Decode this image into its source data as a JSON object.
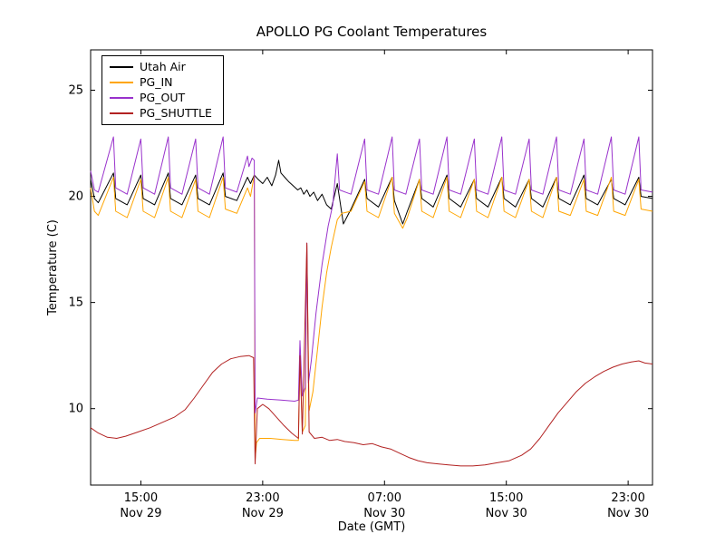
{
  "chart_data": {
    "type": "line",
    "title": "APOLLO PG Coolant Temperatures",
    "xlabel": "Date (GMT)",
    "ylabel": "Temperature (C)",
    "grid": false,
    "legend_position": "upper left",
    "x_unit": "hours since Nov 29 00:00 GMT",
    "xlim": [
      11.7,
      48.6
    ],
    "ylim": [
      6.4,
      26.9
    ],
    "x_ticks": [
      {
        "value": 15,
        "time": "15:00",
        "date": "Nov 29"
      },
      {
        "value": 23,
        "time": "23:00",
        "date": "Nov 29"
      },
      {
        "value": 31,
        "time": "07:00",
        "date": "Nov 30"
      },
      {
        "value": 39,
        "time": "15:00",
        "date": "Nov 30"
      },
      {
        "value": 47,
        "time": "23:00",
        "date": "Nov 30"
      }
    ],
    "y_ticks": [
      10,
      15,
      20,
      25
    ],
    "series": [
      {
        "name": "Utah Air",
        "color": "#000000",
        "points": [
          [
            11.7,
            20.8
          ],
          [
            11.95,
            19.9
          ],
          [
            12.2,
            19.7
          ],
          [
            13.2,
            21.1
          ],
          [
            13.35,
            19.9
          ],
          [
            14.1,
            19.6
          ],
          [
            15.0,
            21.0
          ],
          [
            15.15,
            19.9
          ],
          [
            15.9,
            19.6
          ],
          [
            16.8,
            21.1
          ],
          [
            16.95,
            19.9
          ],
          [
            17.7,
            19.6
          ],
          [
            18.6,
            21.0
          ],
          [
            18.75,
            19.9
          ],
          [
            19.5,
            19.6
          ],
          [
            20.4,
            21.1
          ],
          [
            20.55,
            20.0
          ],
          [
            21.3,
            19.8
          ],
          [
            22.0,
            20.9
          ],
          [
            22.2,
            20.6
          ],
          [
            22.45,
            21.0
          ],
          [
            22.7,
            20.8
          ],
          [
            23.0,
            20.6
          ],
          [
            23.3,
            20.9
          ],
          [
            23.6,
            20.5
          ],
          [
            23.85,
            21.0
          ],
          [
            24.05,
            21.7
          ],
          [
            24.2,
            21.1
          ],
          [
            24.45,
            20.9
          ],
          [
            24.7,
            20.7
          ],
          [
            25.0,
            20.5
          ],
          [
            25.3,
            20.3
          ],
          [
            25.5,
            20.4
          ],
          [
            25.7,
            20.1
          ],
          [
            25.9,
            20.3
          ],
          [
            26.1,
            20.0
          ],
          [
            26.35,
            20.2
          ],
          [
            26.6,
            19.8
          ],
          [
            26.9,
            20.1
          ],
          [
            27.2,
            19.6
          ],
          [
            27.5,
            19.4
          ],
          [
            27.9,
            20.6
          ],
          [
            28.05,
            19.9
          ],
          [
            28.3,
            18.7
          ],
          [
            28.8,
            19.4
          ],
          [
            29.7,
            20.8
          ],
          [
            29.85,
            19.9
          ],
          [
            30.6,
            19.5
          ],
          [
            31.5,
            20.9
          ],
          [
            31.65,
            19.8
          ],
          [
            32.2,
            18.7
          ],
          [
            32.5,
            19.3
          ],
          [
            33.3,
            20.8
          ],
          [
            33.45,
            19.9
          ],
          [
            34.2,
            19.5
          ],
          [
            35.1,
            21.0
          ],
          [
            35.25,
            19.9
          ],
          [
            36.0,
            19.5
          ],
          [
            36.9,
            20.8
          ],
          [
            37.05,
            19.9
          ],
          [
            37.8,
            19.5
          ],
          [
            38.7,
            20.9
          ],
          [
            38.85,
            19.9
          ],
          [
            39.6,
            19.5
          ],
          [
            40.5,
            20.8
          ],
          [
            40.65,
            19.9
          ],
          [
            41.4,
            19.5
          ],
          [
            42.3,
            20.9
          ],
          [
            42.45,
            19.9
          ],
          [
            43.2,
            19.6
          ],
          [
            44.1,
            21.0
          ],
          [
            44.25,
            19.9
          ],
          [
            45.0,
            19.6
          ],
          [
            45.9,
            20.8
          ],
          [
            46.05,
            19.9
          ],
          [
            46.8,
            19.6
          ],
          [
            47.7,
            20.9
          ],
          [
            47.85,
            20.0
          ],
          [
            48.6,
            19.9
          ]
        ]
      },
      {
        "name": "PG_IN",
        "color": "#ffa500",
        "points": [
          [
            11.7,
            20.4
          ],
          [
            11.95,
            19.3
          ],
          [
            12.2,
            19.1
          ],
          [
            13.2,
            20.9
          ],
          [
            13.35,
            19.3
          ],
          [
            14.1,
            19.0
          ],
          [
            15.0,
            20.8
          ],
          [
            15.15,
            19.3
          ],
          [
            15.9,
            19.0
          ],
          [
            16.8,
            20.9
          ],
          [
            16.95,
            19.3
          ],
          [
            17.7,
            19.0
          ],
          [
            18.6,
            20.8
          ],
          [
            18.75,
            19.3
          ],
          [
            19.5,
            19.0
          ],
          [
            20.4,
            20.9
          ],
          [
            20.55,
            19.4
          ],
          [
            21.3,
            19.2
          ],
          [
            22.0,
            20.4
          ],
          [
            22.2,
            20.0
          ],
          [
            22.45,
            21.0
          ],
          [
            22.5,
            7.6
          ],
          [
            22.6,
            8.4
          ],
          [
            22.8,
            8.6
          ],
          [
            23.5,
            8.6
          ],
          [
            24.3,
            8.55
          ],
          [
            25.1,
            8.5
          ],
          [
            25.35,
            8.5
          ],
          [
            25.45,
            12.9
          ],
          [
            25.6,
            8.9
          ],
          [
            25.8,
            9.2
          ],
          [
            25.9,
            17.7
          ],
          [
            26.05,
            9.9
          ],
          [
            26.3,
            10.8
          ],
          [
            26.6,
            12.8
          ],
          [
            26.9,
            14.8
          ],
          [
            27.2,
            16.4
          ],
          [
            27.5,
            17.6
          ],
          [
            27.9,
            18.9
          ],
          [
            28.2,
            19.2
          ],
          [
            28.8,
            19.3
          ],
          [
            29.7,
            20.7
          ],
          [
            29.85,
            19.3
          ],
          [
            30.6,
            19.0
          ],
          [
            31.5,
            20.9
          ],
          [
            31.65,
            19.2
          ],
          [
            32.2,
            18.5
          ],
          [
            32.5,
            19.0
          ],
          [
            33.3,
            20.8
          ],
          [
            33.45,
            19.3
          ],
          [
            34.2,
            19.0
          ],
          [
            35.1,
            20.9
          ],
          [
            35.25,
            19.3
          ],
          [
            36.0,
            19.0
          ],
          [
            36.9,
            20.8
          ],
          [
            37.05,
            19.3
          ],
          [
            37.8,
            19.0
          ],
          [
            38.7,
            20.9
          ],
          [
            38.85,
            19.3
          ],
          [
            39.6,
            19.0
          ],
          [
            40.5,
            20.8
          ],
          [
            40.65,
            19.3
          ],
          [
            41.4,
            19.0
          ],
          [
            42.3,
            20.9
          ],
          [
            42.45,
            19.3
          ],
          [
            43.2,
            19.1
          ],
          [
            44.1,
            20.8
          ],
          [
            44.25,
            19.3
          ],
          [
            45.0,
            19.1
          ],
          [
            45.9,
            20.9
          ],
          [
            46.05,
            19.3
          ],
          [
            46.8,
            19.1
          ],
          [
            47.7,
            20.8
          ],
          [
            47.85,
            19.4
          ],
          [
            48.6,
            19.3
          ]
        ]
      },
      {
        "name": "PG_OUT",
        "color": "#9932cc",
        "points": [
          [
            11.7,
            21.2
          ],
          [
            11.95,
            20.3
          ],
          [
            12.2,
            20.2
          ],
          [
            13.2,
            22.8
          ],
          [
            13.35,
            20.4
          ],
          [
            14.1,
            20.1
          ],
          [
            15.0,
            22.7
          ],
          [
            15.15,
            20.4
          ],
          [
            15.9,
            20.1
          ],
          [
            16.8,
            22.8
          ],
          [
            16.95,
            20.4
          ],
          [
            17.7,
            20.1
          ],
          [
            18.6,
            22.7
          ],
          [
            18.75,
            20.4
          ],
          [
            19.5,
            20.1
          ],
          [
            20.4,
            22.8
          ],
          [
            20.55,
            20.4
          ],
          [
            21.3,
            20.2
          ],
          [
            22.0,
            21.9
          ],
          [
            22.1,
            21.4
          ],
          [
            22.3,
            21.8
          ],
          [
            22.45,
            21.7
          ],
          [
            22.5,
            9.8
          ],
          [
            22.65,
            10.5
          ],
          [
            23.3,
            10.45
          ],
          [
            24.2,
            10.4
          ],
          [
            25.1,
            10.35
          ],
          [
            25.35,
            10.4
          ],
          [
            25.45,
            13.2
          ],
          [
            25.6,
            10.6
          ],
          [
            25.8,
            11.0
          ],
          [
            25.9,
            17.8
          ],
          [
            26.0,
            11.2
          ],
          [
            26.2,
            12.3
          ],
          [
            26.5,
            14.5
          ],
          [
            26.9,
            16.8
          ],
          [
            27.3,
            18.6
          ],
          [
            27.6,
            19.6
          ],
          [
            27.9,
            22.0
          ],
          [
            28.05,
            20.3
          ],
          [
            28.8,
            20.1
          ],
          [
            29.7,
            22.7
          ],
          [
            29.85,
            20.3
          ],
          [
            30.6,
            20.1
          ],
          [
            31.5,
            22.8
          ],
          [
            31.65,
            20.3
          ],
          [
            32.4,
            20.1
          ],
          [
            33.3,
            22.7
          ],
          [
            33.45,
            20.3
          ],
          [
            34.2,
            20.1
          ],
          [
            35.1,
            22.8
          ],
          [
            35.25,
            20.3
          ],
          [
            36.0,
            20.1
          ],
          [
            36.9,
            22.7
          ],
          [
            37.05,
            20.3
          ],
          [
            37.8,
            20.1
          ],
          [
            38.7,
            22.8
          ],
          [
            38.85,
            20.3
          ],
          [
            39.6,
            20.1
          ],
          [
            40.5,
            22.7
          ],
          [
            40.65,
            20.3
          ],
          [
            41.4,
            20.1
          ],
          [
            42.3,
            22.8
          ],
          [
            42.45,
            20.3
          ],
          [
            43.2,
            20.1
          ],
          [
            44.1,
            22.7
          ],
          [
            44.25,
            20.3
          ],
          [
            45.0,
            20.1
          ],
          [
            45.9,
            22.8
          ],
          [
            46.05,
            20.3
          ],
          [
            46.8,
            20.1
          ],
          [
            47.7,
            22.8
          ],
          [
            47.85,
            20.3
          ],
          [
            48.6,
            20.2
          ]
        ]
      },
      {
        "name": "PG_SHUTTLE",
        "color": "#b22222",
        "points": [
          [
            11.7,
            9.1
          ],
          [
            12.2,
            8.85
          ],
          [
            12.8,
            8.65
          ],
          [
            13.4,
            8.6
          ],
          [
            14.0,
            8.7
          ],
          [
            14.8,
            8.9
          ],
          [
            15.6,
            9.1
          ],
          [
            16.4,
            9.35
          ],
          [
            17.2,
            9.6
          ],
          [
            17.9,
            9.95
          ],
          [
            18.5,
            10.5
          ],
          [
            19.1,
            11.1
          ],
          [
            19.7,
            11.7
          ],
          [
            20.3,
            12.1
          ],
          [
            20.9,
            12.35
          ],
          [
            21.5,
            12.45
          ],
          [
            22.1,
            12.5
          ],
          [
            22.4,
            12.4
          ],
          [
            22.5,
            7.4
          ],
          [
            22.65,
            10.0
          ],
          [
            23.0,
            10.2
          ],
          [
            23.4,
            10.0
          ],
          [
            23.9,
            9.6
          ],
          [
            24.4,
            9.2
          ],
          [
            24.9,
            8.85
          ],
          [
            25.35,
            8.6
          ],
          [
            25.45,
            12.5
          ],
          [
            25.6,
            8.8
          ],
          [
            25.9,
            17.8
          ],
          [
            26.05,
            8.9
          ],
          [
            26.4,
            8.6
          ],
          [
            26.9,
            8.65
          ],
          [
            27.4,
            8.5
          ],
          [
            27.9,
            8.55
          ],
          [
            28.4,
            8.45
          ],
          [
            29.0,
            8.4
          ],
          [
            29.6,
            8.3
          ],
          [
            30.2,
            8.35
          ],
          [
            30.8,
            8.2
          ],
          [
            31.4,
            8.1
          ],
          [
            32.0,
            7.9
          ],
          [
            32.6,
            7.7
          ],
          [
            33.2,
            7.55
          ],
          [
            33.8,
            7.45
          ],
          [
            34.5,
            7.4
          ],
          [
            35.2,
            7.35
          ],
          [
            36.0,
            7.3
          ],
          [
            36.8,
            7.3
          ],
          [
            37.6,
            7.35
          ],
          [
            38.4,
            7.45
          ],
          [
            39.2,
            7.55
          ],
          [
            40.0,
            7.8
          ],
          [
            40.6,
            8.1
          ],
          [
            41.2,
            8.6
          ],
          [
            41.8,
            9.2
          ],
          [
            42.4,
            9.8
          ],
          [
            43.0,
            10.3
          ],
          [
            43.6,
            10.8
          ],
          [
            44.2,
            11.2
          ],
          [
            44.8,
            11.5
          ],
          [
            45.4,
            11.75
          ],
          [
            46.0,
            11.95
          ],
          [
            46.6,
            12.1
          ],
          [
            47.2,
            12.2
          ],
          [
            47.7,
            12.25
          ],
          [
            48.1,
            12.15
          ],
          [
            48.6,
            12.1
          ]
        ]
      }
    ]
  }
}
